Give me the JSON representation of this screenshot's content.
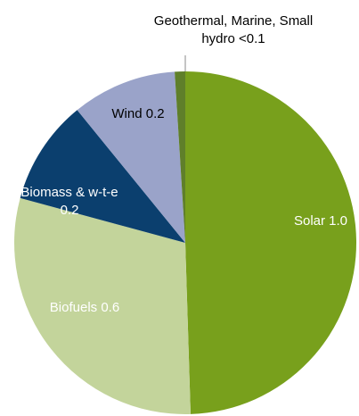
{
  "chart_data": {
    "type": "pie",
    "categories": [
      "Solar",
      "Biofuels",
      "Biomass & w-t-e",
      "Wind",
      "Geothermal, Marine, Small hydro"
    ],
    "values": [
      1.0,
      0.6,
      0.2,
      0.2,
      0.02
    ],
    "value_labels": [
      "1.0",
      "0.6",
      "0.2",
      "0.2",
      "<0.1"
    ],
    "colors": [
      "#78a01c",
      "#c3d49b",
      "#0b3f6e",
      "#9aa3c9",
      "#5f7f2a"
    ]
  }
}
